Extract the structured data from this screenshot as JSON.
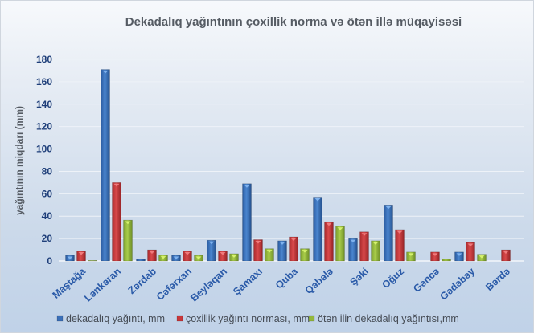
{
  "chart_data": {
    "type": "bar",
    "title": "Dekadalıq yağıntının çoxillik norma  və ötən illə müqayisəsi",
    "xlabel": "",
    "ylabel": "yağıntının miqdarı (mm)",
    "ylim": [
      0,
      180
    ],
    "yticks": [
      0,
      20,
      40,
      60,
      80,
      100,
      120,
      140,
      160,
      180
    ],
    "grid": true,
    "legend_position": "bottom",
    "categories": [
      "Maştağa",
      "Lənkəran",
      "Zərdab",
      "Cəfərxan",
      "Beyləqan",
      "Şamaxı",
      "Quba",
      "Qəbələ",
      "Şəki",
      "Oğuz",
      "Gəncə",
      "Gədəbəy",
      "Bərdə"
    ],
    "series": [
      {
        "name": "dekadalıq yağıntı, mm",
        "color": "#3a6fb8",
        "values": [
          5,
          171,
          1.5,
          5,
          18.5,
          69,
          18,
          57,
          20,
          50,
          0,
          8,
          0
        ]
      },
      {
        "name": "çoxillik yağıntı norması, mm",
        "color": "#c8373a",
        "values": [
          9,
          70,
          10,
          9,
          9,
          19,
          21.5,
          35,
          26,
          28,
          8,
          16.5,
          10
        ]
      },
      {
        "name": "ötən ilin dekadalıq yağıntısı,mm",
        "color": "#93b83c",
        "values": [
          0.5,
          36.5,
          5.5,
          5,
          6.5,
          11,
          11,
          31,
          18,
          8,
          1.5,
          6,
          0
        ]
      }
    ]
  }
}
